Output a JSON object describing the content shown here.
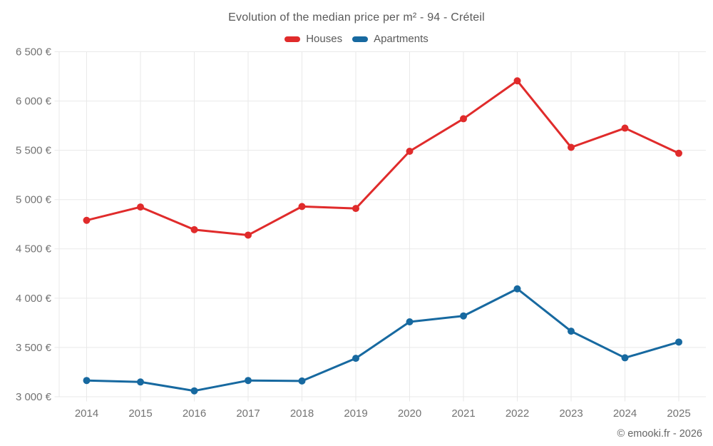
{
  "title": "Evolution of the median price per m² - 94 - Créteil",
  "footer": "© emooki.fr - 2026",
  "colors": {
    "houses": "#e02b2b",
    "apartments": "#1769a0",
    "grid": "#e9e9e9",
    "axis_text": "#737373",
    "title_text": "#595959"
  },
  "chart_data": {
    "type": "line",
    "title": "Evolution of the median price per m² - 94 - Créteil",
    "categories": [
      "2014",
      "2015",
      "2016",
      "2017",
      "2018",
      "2019",
      "2020",
      "2021",
      "2022",
      "2023",
      "2024",
      "2025"
    ],
    "series": [
      {
        "name": "Houses",
        "color": "#e02b2b",
        "values": [
          4790,
          4925,
          4695,
          4640,
          4930,
          4910,
          5490,
          5820,
          6205,
          5530,
          5725,
          5470
        ]
      },
      {
        "name": "Apartments",
        "color": "#1769a0",
        "values": [
          3165,
          3150,
          3060,
          3165,
          3160,
          3390,
          3760,
          3820,
          4095,
          3665,
          3395,
          3555
        ]
      }
    ],
    "xlabel": "",
    "ylabel": "",
    "ylim": [
      3000,
      6500
    ],
    "ytick_step": 500,
    "ytick_suffix": " €",
    "yticks": [
      "3 000 €",
      "3 500 €",
      "4 000 €",
      "4 500 €",
      "5 000 €",
      "5 500 €",
      "6 000 €",
      "6 500 €"
    ],
    "grid": true,
    "legend_position": "top",
    "marker": "circle"
  }
}
